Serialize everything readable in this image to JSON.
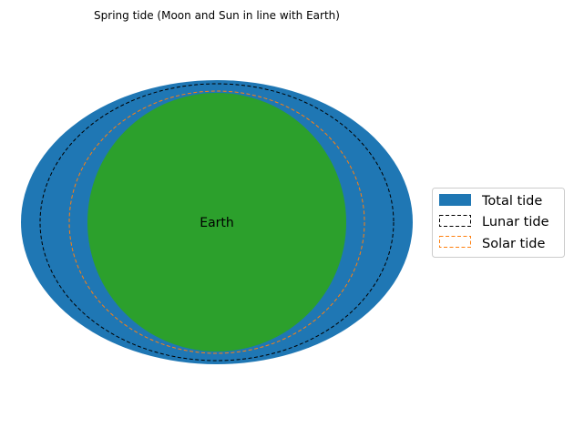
{
  "title": "Spring tide (Moon and Sun in line with Earth)",
  "earth": {
    "label": "Earth",
    "color": "#2ca02c"
  },
  "tides": {
    "total": {
      "label": "Total tide",
      "color": "#1f77b4",
      "style": "filled"
    },
    "lunar": {
      "label": "Lunar tide",
      "color": "#000000",
      "style": "dashed"
    },
    "solar": {
      "label": "Solar tide",
      "color": "#ff7f0e",
      "style": "dashed"
    }
  },
  "legend": {
    "placement": "right",
    "items": [
      {
        "label": "Total tide",
        "swatch": "filled",
        "color": "#1f77b4"
      },
      {
        "label": "Lunar tide",
        "swatch": "dashed",
        "color": "#000000"
      },
      {
        "label": "Solar tide",
        "swatch": "dashed",
        "color": "#ff7f0e"
      }
    ]
  }
}
